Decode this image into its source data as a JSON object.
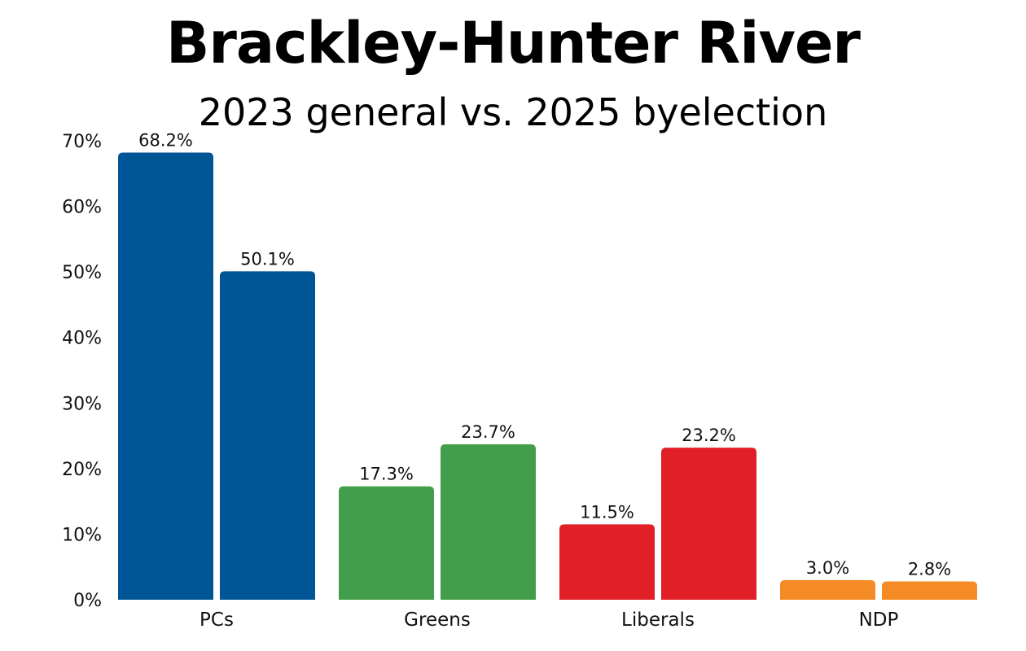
{
  "chart_data": {
    "type": "bar",
    "title": "Brackley-Hunter River",
    "subtitle": "2023 general vs. 2025 byelection",
    "xlabel": "",
    "ylabel": "",
    "ylim": [
      0,
      70
    ],
    "yticks": [
      "0%",
      "10%",
      "20%",
      "30%",
      "40%",
      "50%",
      "60%",
      "70%"
    ],
    "grid": false,
    "legend": "none",
    "categories": [
      "PCs",
      "Greens",
      "Liberals",
      "NDP"
    ],
    "series": [
      {
        "values": [
          68.2,
          17.3,
          11.5,
          3.0
        ],
        "labels": [
          "68.2%",
          "17.3%",
          "11.5%",
          "3.0%"
        ]
      },
      {
        "values": [
          50.1,
          23.7,
          23.2,
          2.8
        ],
        "labels": [
          "50.1%",
          "23.7%",
          "23.2%",
          "2.8%"
        ]
      }
    ],
    "colors": {
      "PCs": "#005596",
      "Greens": "#429e4a",
      "Liberals": "#e11f26",
      "NDP": "#f58b24"
    }
  }
}
